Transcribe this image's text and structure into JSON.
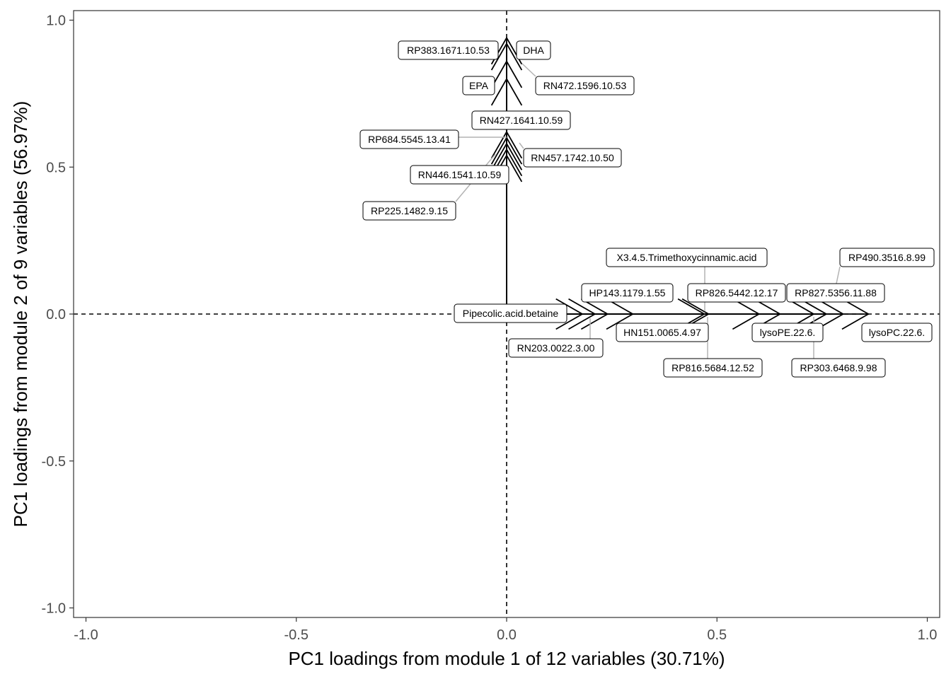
{
  "chart_data": {
    "type": "scatter",
    "title": "",
    "xlabel": "PC1 loadings from module 1 of 12 variables (30.71%)",
    "ylabel": "PC1 loadings from module 2 of 9 variables (56.97%)",
    "xlim": [
      -1.0,
      1.0
    ],
    "ylim": [
      -1.0,
      1.0
    ],
    "x_ticks": [
      -1.0,
      -0.5,
      0.0,
      0.5,
      1.0
    ],
    "x_tick_labels": [
      "-1.0",
      "-0.5",
      "0.0",
      "0.5",
      "1.0"
    ],
    "y_ticks": [
      1.0,
      0.5,
      0.0,
      -0.5,
      -1.0
    ],
    "y_tick_labels": [
      "1.0",
      "0.5",
      "0.0",
      "-0.5",
      "-1.0"
    ],
    "grid": false,
    "reference_lines": {
      "x": 0,
      "y": 0,
      "style": "dashed"
    },
    "arrows_from_origin": true,
    "points": [
      {
        "name": "RP383.1671.10.53",
        "x": 0.0,
        "y": 0.94
      },
      {
        "name": "DHA",
        "x": 0.0,
        "y": 0.92
      },
      {
        "name": "RN472.1596.10.53",
        "x": 0.0,
        "y": 0.86
      },
      {
        "name": "EPA",
        "x": 0.0,
        "y": 0.8
      },
      {
        "name": "RN427.1641.10.59",
        "x": 0.0,
        "y": 0.62
      },
      {
        "name": "RP684.5545.13.41",
        "x": 0.0,
        "y": 0.6
      },
      {
        "name": "RN457.1742.10.50",
        "x": 0.0,
        "y": 0.58
      },
      {
        "name": "RN446.1541.10.59",
        "x": 0.0,
        "y": 0.56
      },
      {
        "name": "RP225.1482.9.15",
        "x": 0.0,
        "y": 0.54
      },
      {
        "name": "Pipecolic.acid.betaine",
        "x": 0.18,
        "y": 0.0
      },
      {
        "name": "RN203.0022.3.00",
        "x": 0.21,
        "y": 0.0
      },
      {
        "name": "HP143.1179.1.55",
        "x": 0.24,
        "y": 0.0
      },
      {
        "name": "HN151.0065.4.97",
        "x": 0.3,
        "y": 0.0
      },
      {
        "name": "X3.4.5.Trimethoxycinnamic.acid",
        "x": 0.47,
        "y": 0.0
      },
      {
        "name": "RP816.5684.12.52",
        "x": 0.48,
        "y": 0.0
      },
      {
        "name": "RP826.5442.12.17",
        "x": 0.6,
        "y": 0.0
      },
      {
        "name": "lysoPE.22.6.",
        "x": 0.65,
        "y": 0.0
      },
      {
        "name": "RP827.5356.11.88",
        "x": 0.73,
        "y": 0.0
      },
      {
        "name": "RP303.6468.9.98",
        "x": 0.76,
        "y": 0.0
      },
      {
        "name": "RP490.3516.8.99",
        "x": 0.8,
        "y": 0.0
      },
      {
        "name": "lysoPC.22.6.",
        "x": 0.86,
        "y": 0.0
      }
    ]
  }
}
